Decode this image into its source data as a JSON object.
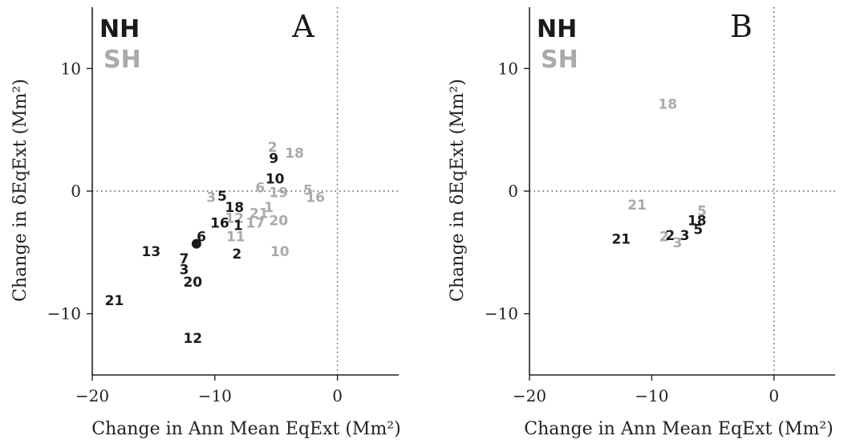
{
  "colors": {
    "nh": "#1a1a1a",
    "sh": "#aaaaaa",
    "axis": "#222222",
    "ref_line": "#555555"
  },
  "legend": {
    "nh": "NH",
    "sh": "SH"
  },
  "chart_data": [
    {
      "type": "scatter",
      "panel_label": "A",
      "xlabel": "Change in Ann Mean EqExt (Mm²)",
      "ylabel": "Change in δEqExt (Mm²)",
      "xlim": [
        -20,
        5
      ],
      "ylim": [
        -15,
        15
      ],
      "xticks": [
        {
          "v": -20,
          "label": "−20"
        },
        {
          "v": -10,
          "label": "−10"
        },
        {
          "v": 0,
          "label": "0"
        }
      ],
      "yticks": [
        {
          "v": -10,
          "label": "−10"
        },
        {
          "v": 0,
          "label": "0"
        },
        {
          "v": 10,
          "label": "10"
        }
      ],
      "grid": false,
      "reference_lines": {
        "x": 0,
        "y": 0
      },
      "legend_position": "top-left",
      "series": [
        {
          "name": "SH",
          "points": [
            {
              "label": "2",
              "x": -5.3,
              "y": 3.6
            },
            {
              "label": "18",
              "x": -3.5,
              "y": 3.1
            },
            {
              "label": "3",
              "x": -10.3,
              "y": -0.5
            },
            {
              "label": "6",
              "x": -6.3,
              "y": 0.3
            },
            {
              "label": "19",
              "x": -4.8,
              "y": -0.1
            },
            {
              "label": "5",
              "x": -2.4,
              "y": 0.1
            },
            {
              "label": "16",
              "x": -1.8,
              "y": -0.5
            },
            {
              "label": "1",
              "x": -5.6,
              "y": -1.3
            },
            {
              "label": "21",
              "x": -6.4,
              "y": -1.8
            },
            {
              "label": "12",
              "x": -8.4,
              "y": -2.2
            },
            {
              "label": "17",
              "x": -6.7,
              "y": -2.6
            },
            {
              "label": "20",
              "x": -4.8,
              "y": -2.4
            },
            {
              "label": "11",
              "x": -8.3,
              "y": -3.7
            },
            {
              "label": "10",
              "x": -4.7,
              "y": -4.9
            }
          ]
        },
        {
          "name": "NH",
          "points": [
            {
              "label": "9",
              "x": -5.2,
              "y": 2.7
            },
            {
              "label": "10",
              "x": -5.1,
              "y": 1.0
            },
            {
              "label": "5",
              "x": -9.4,
              "y": -0.4
            },
            {
              "label": "18",
              "x": -8.4,
              "y": -1.3
            },
            {
              "label": "16",
              "x": -9.6,
              "y": -2.6
            },
            {
              "label": "1",
              "x": -8.1,
              "y": -2.8
            },
            {
              "label": "6",
              "x": -11.1,
              "y": -3.7
            },
            {
              "label": "13",
              "x": -15.2,
              "y": -4.9
            },
            {
              "label": "2",
              "x": -8.2,
              "y": -5.1
            },
            {
              "label": "7",
              "x": -12.5,
              "y": -5.5
            },
            {
              "label": "3",
              "x": -12.5,
              "y": -6.4
            },
            {
              "label": "20",
              "x": -11.8,
              "y": -7.4
            },
            {
              "label": "21",
              "x": -18.2,
              "y": -8.9
            },
            {
              "label": "12",
              "x": -11.8,
              "y": -12.0
            }
          ]
        }
      ],
      "markers": [
        {
          "series": "NH",
          "x": -11.5,
          "y": -4.3
        }
      ]
    },
    {
      "type": "scatter",
      "panel_label": "B",
      "xlabel": "Change in Ann Mean EqExt (Mm²)",
      "ylabel": "Change in δEqExt (Mm²)",
      "xlim": [
        -20,
        5
      ],
      "ylim": [
        -15,
        15
      ],
      "xticks": [
        {
          "v": -20,
          "label": "−20"
        },
        {
          "v": -10,
          "label": "−10"
        },
        {
          "v": 0,
          "label": "0"
        }
      ],
      "yticks": [
        {
          "v": -10,
          "label": "−10"
        },
        {
          "v": 0,
          "label": "0"
        },
        {
          "v": 10,
          "label": "10"
        }
      ],
      "grid": false,
      "reference_lines": {
        "x": 0,
        "y": 0
      },
      "legend_position": "top-left",
      "series": [
        {
          "name": "SH",
          "points": [
            {
              "label": "18",
              "x": -8.7,
              "y": 7.1
            },
            {
              "label": "21",
              "x": -11.2,
              "y": -1.1
            },
            {
              "label": "5",
              "x": -5.9,
              "y": -1.6
            },
            {
              "label": "2",
              "x": -9.0,
              "y": -3.7
            },
            {
              "label": "3",
              "x": -7.9,
              "y": -4.2
            }
          ]
        },
        {
          "name": "NH",
          "points": [
            {
              "label": "18",
              "x": -6.3,
              "y": -2.4
            },
            {
              "label": "2",
              "x": -8.5,
              "y": -3.6
            },
            {
              "label": "3",
              "x": -7.3,
              "y": -3.6
            },
            {
              "label": "5",
              "x": -6.2,
              "y": -3.1
            },
            {
              "label": "21",
              "x": -12.5,
              "y": -3.9
            }
          ]
        }
      ],
      "markers": []
    }
  ]
}
